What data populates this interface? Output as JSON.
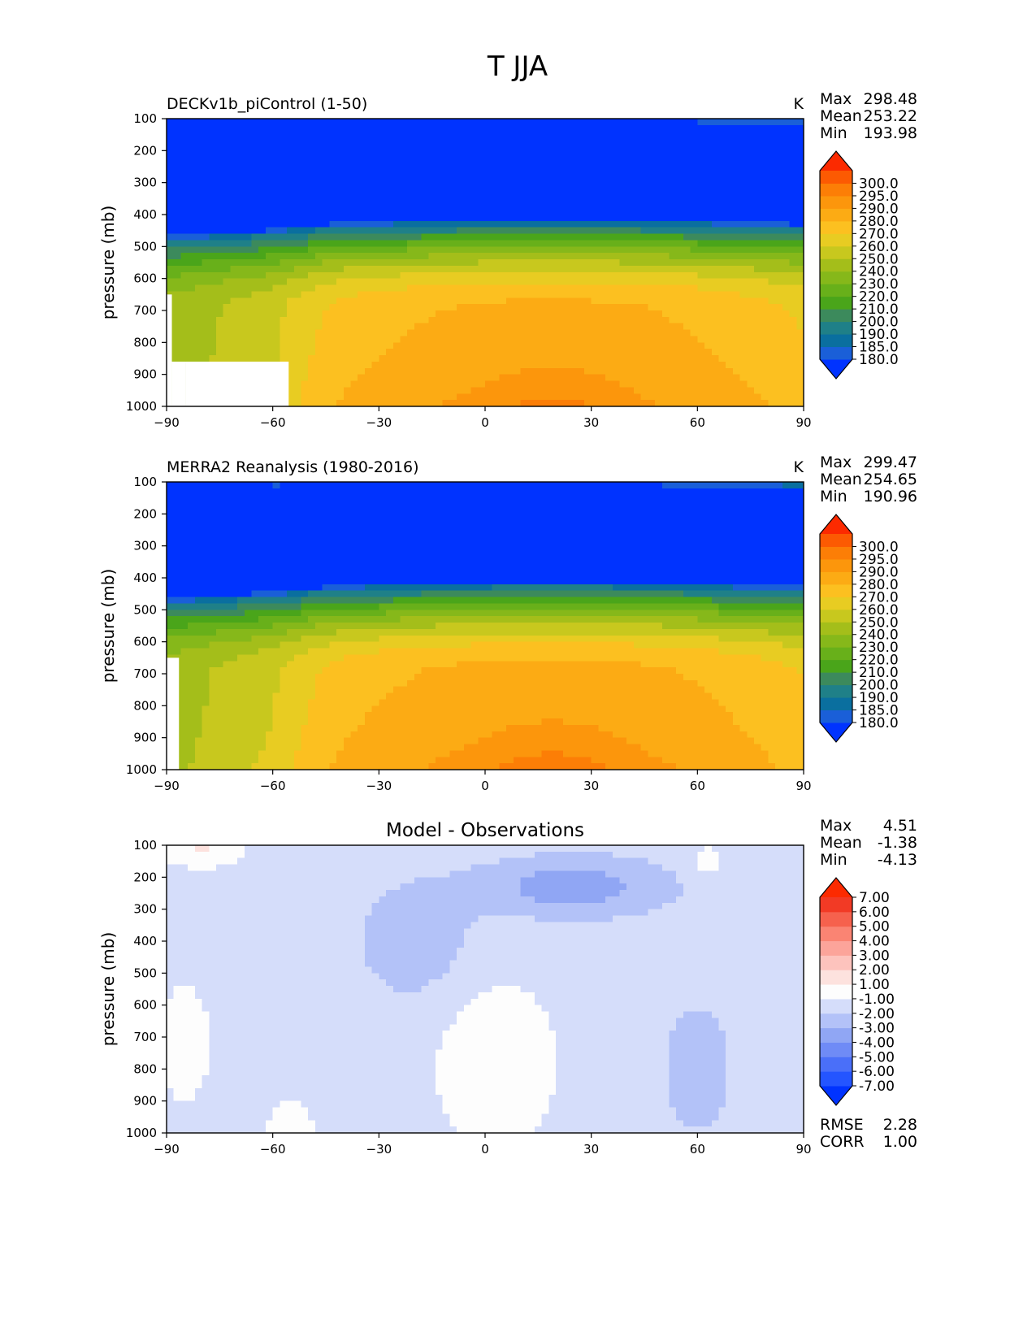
{
  "figure": {
    "title": "T JJA"
  },
  "colors": {
    "temp_levels": [
      "#0033ff",
      "#1a5fd8",
      "#0a6f9f",
      "#1f8088",
      "#3c8a5c",
      "#4aa51a",
      "#68b01a",
      "#86b81a",
      "#a4be1a",
      "#c8c81e",
      "#e8cc22",
      "#fcc020",
      "#fcab14",
      "#fc960c",
      "#fc7e06",
      "#fc5a02",
      "#fc2a00"
    ],
    "diff_levels": [
      "#0033ff",
      "#2455ff",
      "#4a6ff9",
      "#6f8bf6",
      "#90a6f4",
      "#b3c2f8",
      "#d5ddfa",
      "#fdfdfd",
      "#fde2de",
      "#fdc3bd",
      "#fca49a",
      "#fa8473",
      "#f6614d",
      "#f23a25",
      "#fc2a00"
    ]
  },
  "chart_data": [
    {
      "type": "heatmap",
      "title": "DECKv1b_piControl (1-50)",
      "units": "K",
      "xlabel": "",
      "ylabel": "pressure (mb)",
      "xlim": [
        -90,
        90
      ],
      "ylim": [
        1000,
        100
      ],
      "x_ticks": [
        "−90",
        "−60",
        "−30",
        "0",
        "30",
        "60",
        "90"
      ],
      "y_ticks": [
        "100",
        "200",
        "300",
        "400",
        "500",
        "600",
        "700",
        "800",
        "900",
        "1000"
      ],
      "stats": [
        {
          "label": "Max",
          "value": "298.48"
        },
        {
          "label": "Mean",
          "value": "253.22"
        },
        {
          "label": "Min",
          "value": "193.98"
        }
      ],
      "colorbar": {
        "ticks": [
          "180.0",
          "185.0",
          "190.0",
          "200.0",
          "210.0",
          "220.0",
          "230.0",
          "240.0",
          "250.0",
          "260.0",
          "270.0",
          "280.0",
          "290.0",
          "295.0",
          "300.0"
        ],
        "extend": "both"
      },
      "masked_regions": [
        {
          "lat_range": [
            -90,
            -88.5
          ],
          "p_range": [
            650,
            1000
          ]
        },
        {
          "lat_range": [
            -88.5,
            -84.5
          ],
          "p_range": [
            860,
            1000
          ]
        },
        {
          "lat_range": [
            -84.5,
            -55.5
          ],
          "p_range": [
            860,
            1000
          ]
        }
      ],
      "field": "model"
    },
    {
      "type": "heatmap",
      "title": "MERRA2 Reanalysis (1980-2016)",
      "units": "K",
      "xlabel": "",
      "ylabel": "pressure (mb)",
      "xlim": [
        -90,
        90
      ],
      "ylim": [
        1000,
        100
      ],
      "x_ticks": [
        "−90",
        "−60",
        "−30",
        "0",
        "30",
        "60",
        "90"
      ],
      "y_ticks": [
        "100",
        "200",
        "300",
        "400",
        "500",
        "600",
        "700",
        "800",
        "900",
        "1000"
      ],
      "stats": [
        {
          "label": "Max",
          "value": "299.47"
        },
        {
          "label": "Mean",
          "value": "254.65"
        },
        {
          "label": "Min",
          "value": "190.96"
        }
      ],
      "colorbar": {
        "ticks": [
          "180.0",
          "185.0",
          "190.0",
          "200.0",
          "210.0",
          "220.0",
          "230.0",
          "240.0",
          "250.0",
          "260.0",
          "270.0",
          "280.0",
          "290.0",
          "295.0",
          "300.0"
        ],
        "extend": "both"
      },
      "masked_regions": [
        {
          "lat_range": [
            -90,
            -86.5
          ],
          "p_range": [
            650,
            1000
          ]
        }
      ],
      "field": "obs"
    },
    {
      "type": "heatmap",
      "title": "Model - Observations",
      "units": "",
      "xlabel": "",
      "ylabel": "pressure (mb)",
      "xlim": [
        -90,
        90
      ],
      "ylim": [
        1000,
        100
      ],
      "x_ticks": [
        "−90",
        "−60",
        "−30",
        "0",
        "30",
        "60",
        "90"
      ],
      "y_ticks": [
        "100",
        "200",
        "300",
        "400",
        "500",
        "600",
        "700",
        "800",
        "900",
        "1000"
      ],
      "stats": [
        {
          "label": "Max",
          "value": "4.51"
        },
        {
          "label": "Mean",
          "value": "-1.38"
        },
        {
          "label": "Min",
          "value": "-4.13"
        }
      ],
      "extra_stats": [
        {
          "label": "RMSE",
          "value": "2.28"
        },
        {
          "label": "CORR",
          "value": "1.00"
        }
      ],
      "colorbar": {
        "ticks": [
          "-7.00",
          "-6.00",
          "-5.00",
          "-4.00",
          "-3.00",
          "-2.00",
          "-1.00",
          "1.00",
          "2.00",
          "3.00",
          "4.00",
          "5.00",
          "6.00",
          "7.00"
        ],
        "extend": "both"
      },
      "field": "diff"
    }
  ]
}
